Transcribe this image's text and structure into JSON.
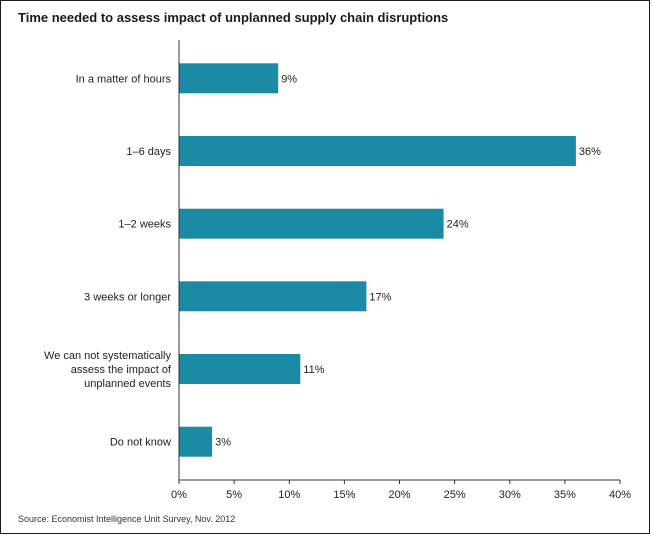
{
  "chart_data": {
    "type": "bar",
    "orientation": "horizontal",
    "title": "Time needed to assess impact of unplanned supply chain disruptions",
    "categories": [
      [
        "In a matter of hours"
      ],
      [
        "1–6 days"
      ],
      [
        "1–2 weeks"
      ],
      [
        "3 weeks or longer"
      ],
      [
        "We can not systematically",
        "assess the impact of",
        "unplanned events"
      ],
      [
        "Do not know"
      ]
    ],
    "values": [
      9,
      36,
      24,
      17,
      11,
      3
    ],
    "data_labels": [
      "9%",
      "36%",
      "24%",
      "17%",
      "11%",
      "3%"
    ],
    "xlim": [
      0,
      40
    ],
    "x_ticks": [
      0,
      5,
      10,
      15,
      20,
      25,
      30,
      35,
      40
    ],
    "x_tick_labels": [
      "0%",
      "5%",
      "10%",
      "15%",
      "20%",
      "25%",
      "30%",
      "35%",
      "40%"
    ],
    "grid": false,
    "bar_color": "#1b8aa5",
    "source": "Source: Economist Intelligence Unit Survey, Nov. 2012"
  }
}
